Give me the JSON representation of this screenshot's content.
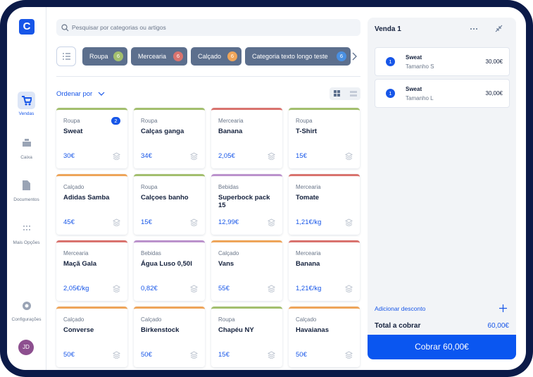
{
  "sidebar": {
    "logo": "C",
    "nav": [
      {
        "label": "Vendas"
      },
      {
        "label": "Caixa"
      },
      {
        "label": "Documentos"
      },
      {
        "label": "Mais Opções"
      }
    ],
    "settings": "Configurações",
    "avatar": "JD"
  },
  "search": {
    "placeholder": "Pesquisar por categorias ou artigos"
  },
  "categories": [
    {
      "name": "Roupa",
      "count": 6,
      "color": "#a3bf6e"
    },
    {
      "name": "Mercearia",
      "count": 6,
      "color": "#d9736e"
    },
    {
      "name": "Calçado",
      "count": 6,
      "color": "#eea55a"
    },
    {
      "name": "Categoria texto longo teste",
      "count": 6,
      "color": "#4a90e2"
    }
  ],
  "sort": {
    "label": "Ordenar por"
  },
  "products": [
    {
      "category": "Roupa",
      "name": "Sweat",
      "price": "30€",
      "badge": 2,
      "color": "#a3bf6e"
    },
    {
      "category": "Roupa",
      "name": "Calças ganga",
      "price": "34€",
      "color": "#a3bf6e"
    },
    {
      "category": "Mercearia",
      "name": "Banana",
      "price": "2,05€",
      "color": "#d9736e"
    },
    {
      "category": "Roupa",
      "name": "T-Shirt",
      "price": "15€",
      "color": "#a3bf6e"
    },
    {
      "category": "Calçado",
      "name": "Adidas Samba",
      "price": "45€",
      "color": "#eea55a"
    },
    {
      "category": "Roupa",
      "name": "Calçoes banho",
      "price": "15€",
      "color": "#a3bf6e"
    },
    {
      "category": "Bebidas",
      "name": "Superbock pack 15",
      "price": "12,99€",
      "color": "#bb92cc"
    },
    {
      "category": "Mercearia",
      "name": "Tomate",
      "price": "1,21€/kg",
      "color": "#d9736e"
    },
    {
      "category": "Mercearia",
      "name": "Maçã Gala",
      "price": "2,05€/kg",
      "color": "#d9736e"
    },
    {
      "category": "Bebidas",
      "name": "Água Luso 0,50l",
      "price": "0,82€",
      "color": "#bb92cc"
    },
    {
      "category": "Calçado",
      "name": "Vans",
      "price": "55€",
      "color": "#eea55a"
    },
    {
      "category": "Mercearia",
      "name": "Banana",
      "price": "1,21€/kg",
      "color": "#d9736e"
    },
    {
      "category": "Calçado",
      "name": "Converse",
      "price": "50€",
      "color": "#eea55a"
    },
    {
      "category": "Calçado",
      "name": "Birkenstock",
      "price": "50€",
      "color": "#eea55a"
    },
    {
      "category": "Roupa",
      "name": "Chapéu NY",
      "price": "15€",
      "color": "#a3bf6e"
    },
    {
      "category": "Calçado",
      "name": "Havaianas",
      "price": "50€",
      "color": "#eea55a"
    }
  ],
  "sale": {
    "title": "Venda 1",
    "items": [
      {
        "qty": 1,
        "name": "Sweat",
        "variant": "Tamanho S",
        "price": "30,00€"
      },
      {
        "qty": 1,
        "name": "Sweat",
        "variant": "Tamanho L",
        "price": "30,00€"
      }
    ],
    "discount": "Adicionar desconto",
    "total_label": "Total a cobrar",
    "total": "60,00€",
    "charge": "Cobrar 60,00€"
  }
}
